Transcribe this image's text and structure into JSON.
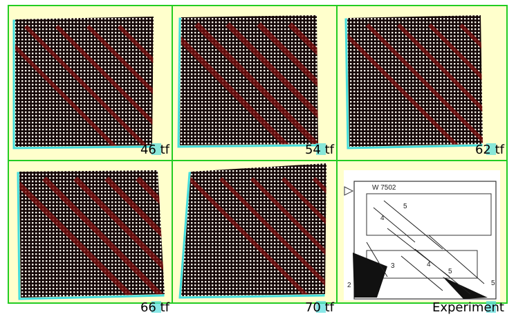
{
  "panels": [
    {
      "label": "46 tf"
    },
    {
      "label": "54 tf"
    },
    {
      "label": "62 tf"
    },
    {
      "label": "66 tf"
    },
    {
      "label": "70 tf"
    },
    {
      "label": "Experiment",
      "specimen": "W 7502",
      "crack_labels": [
        "5",
        "4",
        "3",
        "4",
        "5",
        "2",
        "5"
      ]
    }
  ]
}
